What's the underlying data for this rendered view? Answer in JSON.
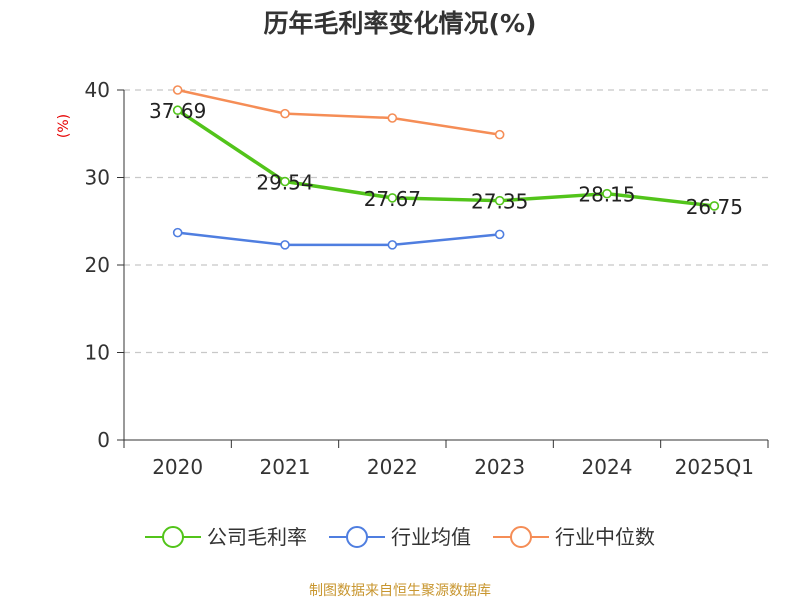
{
  "chart_data": {
    "type": "line",
    "title": "历年毛利率变化情况(%)",
    "ylabel": "(%)",
    "xlabel": "",
    "categories": [
      "2020",
      "2021",
      "2022",
      "2023",
      "2024",
      "2025Q1"
    ],
    "ylim": [
      0,
      40
    ],
    "yticks": [
      0,
      10,
      20,
      30,
      40
    ],
    "grid": "horizontal dashed",
    "legend_position": "bottom",
    "series": [
      {
        "name": "公司毛利率",
        "color": "#52c41a",
        "values": [
          37.69,
          29.54,
          27.67,
          27.35,
          28.15,
          26.75
        ],
        "labels": [
          "37.69",
          "29.54",
          "27.67",
          "27.35",
          "28.15",
          "26.75"
        ],
        "line_width": "thick"
      },
      {
        "name": "行业均值",
        "color": "#4f7ee0",
        "values": [
          23.7,
          22.3,
          22.3,
          23.5,
          null,
          null
        ]
      },
      {
        "name": "行业中位数",
        "color": "#f58d56",
        "values": [
          40.0,
          37.3,
          36.8,
          34.9,
          null,
          null
        ]
      }
    ]
  },
  "footer": {
    "source": "制图数据来自恒生聚源数据库"
  }
}
